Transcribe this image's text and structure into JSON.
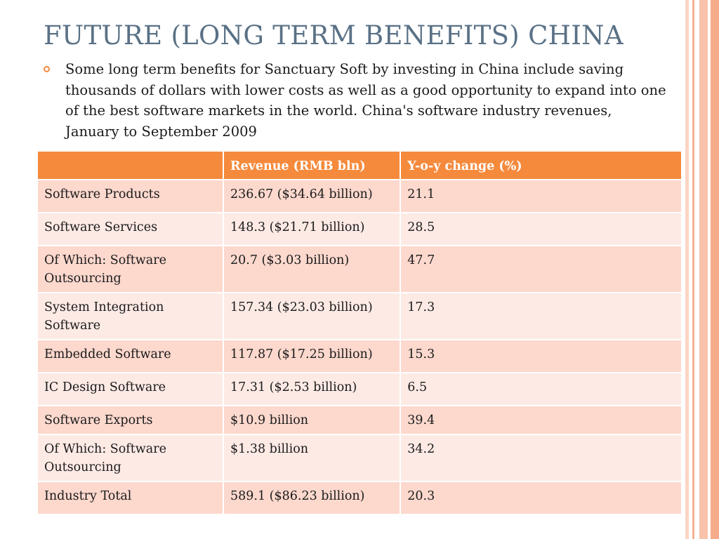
{
  "slide": {
    "title": "FUTURE (LONG TERM BENEFITS) CHINA",
    "bullet": "Some long term benefits for Sanctuary Soft by investing in China include saving thousands of dollars with lower costs as well as a good opportunity to expand into one of the best software markets in the world. China's software industry revenues, January to September 2009"
  },
  "table": {
    "headers": [
      "",
      "Revenue (RMB bln)",
      "Y-o-y change (%)"
    ],
    "rows": [
      [
        "Software Products",
        "236.67 ($34.64 billion)",
        "21.1"
      ],
      [
        "Software Services",
        "148.3 ($21.71 billion)",
        "28.5"
      ],
      [
        "Of Which: Software Outsourcing",
        "20.7 ($3.03 billion)",
        "47.7"
      ],
      [
        "System Integration Software",
        "157.34 ($23.03 billion)",
        "17.3"
      ],
      [
        "Embedded Software",
        "117.87 ($17.25 billion)",
        "15.3"
      ],
      [
        "IC Design Software",
        "17.31 ($2.53 billion)",
        "6.5"
      ],
      [
        "Software Exports",
        "$10.9 billion",
        "39.4"
      ],
      [
        "Of Which: Software Outsourcing",
        "$1.38 billion",
        "34.2"
      ],
      [
        "Industry Total",
        "589.1 ($86.23 billion)",
        "20.3"
      ]
    ]
  },
  "colors": {
    "accent": "#f58a3c",
    "title": "#5a7186",
    "row_odd": "#fcd8cd",
    "row_even": "#fdeae5",
    "stripe": "#f7b89c"
  },
  "icons": {
    "bullet": "circle-bullet-icon"
  }
}
